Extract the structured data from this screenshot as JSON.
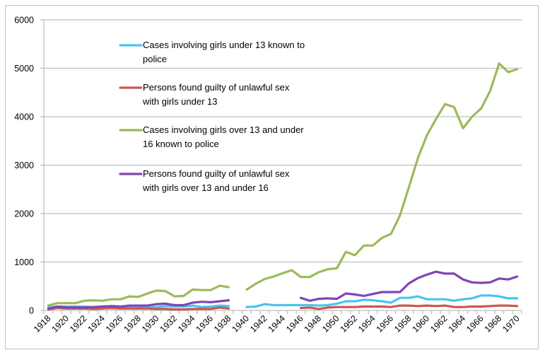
{
  "chart_data": {
    "type": "line",
    "title": "",
    "xlabel": "",
    "ylabel": "",
    "ylim": [
      0,
      6000
    ],
    "yticks": [
      0,
      1000,
      2000,
      3000,
      4000,
      5000,
      6000
    ],
    "grid": "horizontal",
    "legend_position": "top-left-inside",
    "x": [
      1918,
      1919,
      1920,
      1921,
      1922,
      1923,
      1924,
      1925,
      1926,
      1927,
      1928,
      1929,
      1930,
      1931,
      1932,
      1933,
      1934,
      1935,
      1936,
      1937,
      1938,
      1939,
      1940,
      1941,
      1942,
      1943,
      1944,
      1945,
      1946,
      1947,
      1948,
      1949,
      1950,
      1951,
      1952,
      1953,
      1954,
      1955,
      1956,
      1957,
      1958,
      1959,
      1960,
      1961,
      1962,
      1963,
      1964,
      1965,
      1966,
      1967,
      1968,
      1969,
      1970
    ],
    "xtick_labels": [
      "1918",
      "1920",
      "1922",
      "1924",
      "1926",
      "1928",
      "1930",
      "1932",
      "1934",
      "1936",
      "1938",
      "1940",
      "1942",
      "1944",
      "1946",
      "1948",
      "1950",
      "1952",
      "1954",
      "1956",
      "1958",
      "1960",
      "1962",
      "1964",
      "1966",
      "1968",
      "1970"
    ],
    "series": [
      {
        "name": "Cases involving girls under 13 known to police",
        "legend_lines": [
          "Cases involving girls under 13 known to",
          "police"
        ],
        "color": "#4bc3ee",
        "values": [
          60,
          80,
          80,
          80,
          80,
          70,
          80,
          90,
          80,
          80,
          80,
          70,
          70,
          90,
          80,
          80,
          100,
          70,
          80,
          100,
          90,
          null,
          70,
          80,
          130,
          110,
          110,
          110,
          110,
          110,
          100,
          110,
          140,
          190,
          190,
          220,
          210,
          190,
          160,
          260,
          260,
          290,
          230,
          230,
          230,
          200,
          230,
          250,
          310,
          310,
          290,
          250,
          250
        ]
      },
      {
        "name": "Persons found guilty of unlawful sex with girls under 13",
        "legend_lines": [
          "Persons found guilty of unlawful sex",
          "with girls under 13"
        ],
        "color": "#c9584f",
        "values": [
          20,
          50,
          40,
          40,
          40,
          30,
          40,
          50,
          40,
          40,
          40,
          40,
          30,
          30,
          20,
          20,
          30,
          30,
          30,
          60,
          40,
          null,
          null,
          null,
          null,
          null,
          null,
          null,
          50,
          60,
          30,
          60,
          70,
          70,
          70,
          80,
          80,
          80,
          70,
          100,
          100,
          90,
          100,
          90,
          100,
          70,
          70,
          80,
          80,
          90,
          100,
          100,
          90
        ]
      },
      {
        "name": "Cases involving girls over 13 and under 16 known to police",
        "legend_lines": [
          "Cases involving girls over 13 and under",
          "16 known to police"
        ],
        "color": "#9bbb59",
        "values": [
          100,
          150,
          150,
          150,
          200,
          210,
          200,
          230,
          230,
          290,
          280,
          350,
          410,
          400,
          290,
          300,
          430,
          420,
          420,
          510,
          480,
          null,
          430,
          550,
          650,
          700,
          770,
          830,
          690,
          690,
          790,
          850,
          870,
          1210,
          1140,
          1340,
          1340,
          1500,
          1580,
          1960,
          2550,
          3150,
          3620,
          3950,
          4260,
          4200,
          3760,
          4000,
          4170,
          4530,
          5100,
          4920,
          4980
        ]
      },
      {
        "name": "Persons found guilty of unlawful sex with girls over 13 and under 16",
        "legend_lines": [
          "Persons found guilty of unlawful sex",
          "with girls over 13 and under 16"
        ],
        "color": "#8144b5",
        "values": [
          40,
          80,
          60,
          60,
          60,
          70,
          80,
          90,
          80,
          100,
          100,
          100,
          130,
          140,
          110,
          110,
          160,
          180,
          170,
          190,
          210,
          null,
          null,
          null,
          null,
          null,
          null,
          null,
          260,
          200,
          240,
          250,
          240,
          350,
          330,
          300,
          340,
          380,
          380,
          380,
          560,
          670,
          740,
          800,
          760,
          760,
          640,
          580,
          570,
          580,
          660,
          640,
          700
        ]
      }
    ]
  }
}
